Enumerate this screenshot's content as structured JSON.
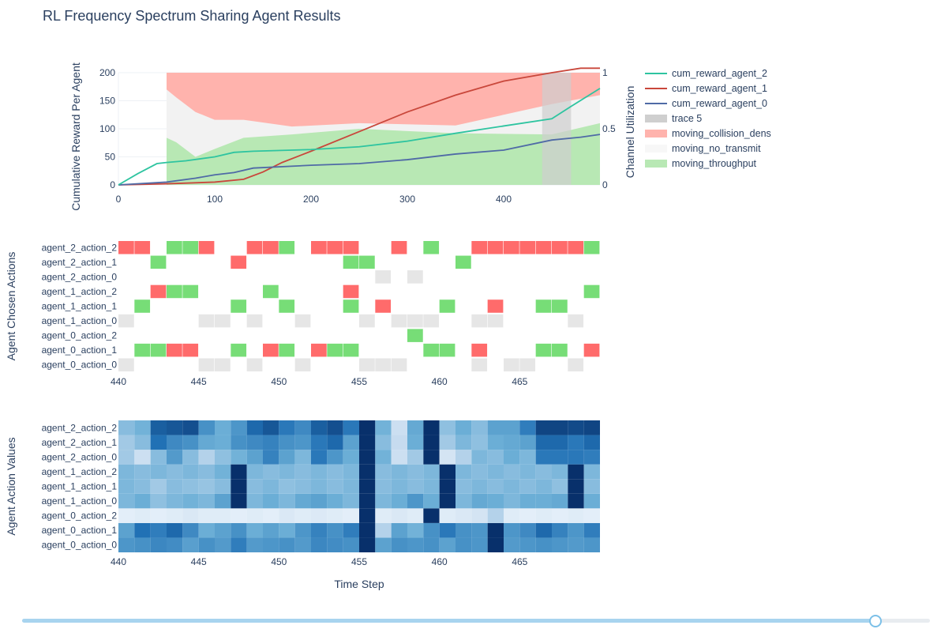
{
  "page": {
    "title": "RL Frequency Spectrum Sharing Agent Results"
  },
  "colors": {
    "agent_2": "#2ec4a0",
    "agent_1": "#c9473b",
    "agent_0": "#4f6aa6",
    "collision": "#ffb3ad",
    "no_transmit": "#f2f2f2",
    "throughput": "#b8e8b4",
    "trace5": "#cfcfcf",
    "ok": "#77dd77",
    "bad": "#ff6b6b",
    "idle": "#e6e6e6"
  },
  "slider": {
    "value": 0.94
  },
  "chart_data": [
    {
      "type": "line",
      "ylabel": "Cumulative Reward Per Agent",
      "y2label": "Channel Utilization",
      "xlim": [
        0,
        500
      ],
      "ylim": [
        0,
        200
      ],
      "y2lim": [
        0,
        1
      ],
      "xticks": [
        0,
        100,
        200,
        300,
        400
      ],
      "yticks": [
        0,
        50,
        100,
        150,
        200
      ],
      "y2ticks": [
        0,
        0.5,
        1
      ],
      "y2ticklabels": [
        "0",
        "0.5",
        "1"
      ],
      "legend_position": "right",
      "series": [
        {
          "name": "cum_reward_agent_2",
          "x": [
            0,
            20,
            40,
            50,
            70,
            100,
            120,
            140,
            200,
            250,
            300,
            350,
            400,
            450,
            470,
            500
          ],
          "y": [
            0,
            20,
            38,
            40,
            43,
            50,
            58,
            60,
            63,
            68,
            78,
            92,
            105,
            118,
            140,
            172
          ]
        },
        {
          "name": "cum_reward_agent_1",
          "x": [
            0,
            50,
            100,
            130,
            150,
            170,
            200,
            250,
            300,
            350,
            400,
            450,
            480,
            500
          ],
          "y": [
            0,
            2,
            5,
            10,
            23,
            40,
            60,
            95,
            130,
            160,
            185,
            200,
            208,
            208
          ]
        },
        {
          "name": "cum_reward_agent_0",
          "x": [
            0,
            50,
            80,
            100,
            120,
            140,
            200,
            250,
            300,
            350,
            400,
            450,
            480,
            500
          ],
          "y": [
            0,
            5,
            12,
            18,
            22,
            30,
            35,
            38,
            45,
            55,
            62,
            80,
            85,
            90
          ]
        },
        {
          "name": "trace 5",
          "x": [
            440,
            470
          ]
        },
        {
          "name": "moving_collision_dens",
          "x": [
            50,
            60,
            80,
            100,
            130,
            180,
            250,
            350,
            450,
            500
          ],
          "y": [
            1,
            1,
            1,
            1,
            1,
            1,
            1,
            1,
            1,
            1
          ]
        },
        {
          "name": "moving_no_transmit",
          "x": [
            50,
            60,
            80,
            100,
            130,
            180,
            250,
            350,
            450,
            500
          ],
          "y": [
            0.85,
            0.78,
            0.65,
            0.58,
            0.58,
            0.52,
            0.55,
            0.53,
            0.72,
            0.8
          ]
        },
        {
          "name": "moving_throughput",
          "x": [
            50,
            60,
            80,
            100,
            130,
            180,
            250,
            350,
            450,
            500
          ],
          "y": [
            0.42,
            0.38,
            0.25,
            0.32,
            0.42,
            0.45,
            0.5,
            0.46,
            0.45,
            0.55
          ]
        }
      ]
    },
    {
      "type": "heatmap",
      "ylabel": "Agent Chosen Actions",
      "xlim": [
        440,
        469
      ],
      "xticks": [
        440,
        445,
        450,
        455,
        460,
        465
      ],
      "rows": [
        "agent_0_action_0",
        "agent_0_action_1",
        "agent_0_action_2",
        "agent_1_action_0",
        "agent_1_action_1",
        "agent_1_action_2",
        "agent_2_action_0",
        "agent_2_action_1",
        "agent_2_action_2"
      ],
      "values": [
        [
          1,
          0,
          0,
          0,
          0,
          1,
          1,
          0,
          1,
          0,
          0,
          1,
          0,
          0,
          0,
          1,
          1,
          1,
          0,
          0,
          0,
          0,
          1,
          0,
          1,
          1,
          0,
          0,
          1,
          0
        ],
        [
          0,
          2,
          2,
          3,
          3,
          0,
          0,
          2,
          0,
          3,
          2,
          0,
          3,
          2,
          2,
          0,
          0,
          0,
          0,
          2,
          2,
          0,
          3,
          0,
          0,
          0,
          2,
          2,
          0,
          3
        ],
        [
          0,
          0,
          0,
          0,
          0,
          0,
          0,
          0,
          0,
          0,
          0,
          0,
          0,
          0,
          0,
          0,
          0,
          0,
          2,
          0,
          0,
          0,
          0,
          0,
          0,
          0,
          0,
          0,
          0,
          0
        ],
        [
          1,
          0,
          0,
          0,
          0,
          1,
          1,
          0,
          1,
          0,
          0,
          1,
          0,
          0,
          0,
          1,
          0,
          1,
          1,
          1,
          0,
          0,
          1,
          1,
          0,
          0,
          0,
          0,
          1,
          0
        ],
        [
          0,
          2,
          0,
          0,
          0,
          0,
          0,
          2,
          0,
          0,
          2,
          0,
          0,
          0,
          2,
          0,
          3,
          0,
          0,
          0,
          2,
          0,
          0,
          3,
          0,
          0,
          2,
          2,
          0,
          0
        ],
        [
          0,
          0,
          3,
          2,
          2,
          0,
          0,
          0,
          0,
          2,
          0,
          0,
          0,
          0,
          3,
          0,
          0,
          0,
          0,
          0,
          0,
          0,
          0,
          0,
          0,
          0,
          0,
          0,
          0,
          2
        ],
        [
          0,
          0,
          0,
          0,
          0,
          0,
          0,
          0,
          0,
          0,
          0,
          0,
          0,
          0,
          0,
          0,
          1,
          0,
          1,
          0,
          0,
          0,
          0,
          0,
          0,
          0,
          0,
          0,
          0,
          0
        ],
        [
          0,
          0,
          2,
          0,
          0,
          0,
          0,
          3,
          0,
          0,
          0,
          0,
          0,
          0,
          2,
          2,
          0,
          0,
          0,
          0,
          0,
          2,
          0,
          0,
          0,
          0,
          0,
          0,
          0,
          0
        ],
        [
          3,
          3,
          0,
          2,
          2,
          3,
          0,
          0,
          3,
          3,
          2,
          0,
          3,
          3,
          3,
          0,
          0,
          3,
          0,
          2,
          0,
          0,
          3,
          3,
          3,
          3,
          3,
          3,
          3,
          2
        ]
      ]
    },
    {
      "type": "heatmap",
      "ylabel": "Agent Action Values",
      "xlabel": "Time Step",
      "xlim": [
        440,
        469
      ],
      "xticks": [
        440,
        445,
        450,
        455,
        460,
        465
      ],
      "rows": [
        "agent_0_action_0",
        "agent_0_action_1",
        "agent_0_action_2",
        "agent_1_action_0",
        "agent_1_action_1",
        "agent_1_action_2",
        "agent_2_action_0",
        "agent_2_action_1",
        "agent_2_action_2"
      ],
      "values": [
        [
          0.6,
          0.62,
          0.66,
          0.64,
          0.56,
          0.62,
          0.58,
          0.7,
          0.58,
          0.6,
          0.62,
          0.58,
          0.66,
          0.64,
          0.62,
          1.0,
          0.55,
          0.62,
          0.6,
          0.62,
          0.55,
          0.62,
          0.6,
          1.0,
          0.58,
          0.6,
          0.62,
          0.6,
          0.58,
          0.6
        ],
        [
          0.55,
          0.75,
          0.7,
          0.78,
          0.65,
          0.5,
          0.55,
          0.62,
          0.5,
          0.55,
          0.5,
          0.6,
          0.68,
          0.62,
          0.7,
          1.0,
          0.3,
          0.55,
          0.48,
          0.62,
          0.72,
          0.62,
          0.6,
          1.0,
          0.6,
          0.65,
          0.78,
          0.68,
          0.6,
          0.7
        ],
        [
          0.1,
          0.12,
          0.1,
          0.12,
          0.15,
          0.12,
          0.12,
          0.1,
          0.12,
          0.1,
          0.15,
          0.12,
          0.14,
          0.12,
          0.1,
          1.0,
          0.12,
          0.15,
          0.12,
          1.0,
          0.12,
          0.15,
          0.18,
          0.3,
          0.12,
          0.1,
          0.12,
          0.1,
          0.12,
          0.1
        ],
        [
          0.45,
          0.5,
          0.4,
          0.45,
          0.48,
          0.45,
          0.55,
          1.0,
          0.45,
          0.5,
          0.45,
          0.52,
          0.55,
          0.5,
          0.45,
          1.0,
          0.45,
          0.5,
          0.6,
          0.5,
          1.0,
          0.45,
          0.52,
          0.5,
          0.45,
          0.5,
          0.5,
          0.52,
          1.0,
          0.5
        ],
        [
          0.45,
          0.42,
          0.35,
          0.42,
          0.4,
          0.38,
          0.42,
          1.0,
          0.42,
          0.45,
          0.4,
          0.42,
          0.45,
          0.42,
          0.45,
          1.0,
          0.42,
          0.45,
          0.42,
          0.45,
          1.0,
          0.42,
          0.45,
          0.42,
          0.45,
          0.42,
          0.45,
          0.4,
          1.0,
          0.42
        ],
        [
          0.45,
          0.42,
          0.45,
          0.42,
          0.45,
          0.42,
          0.48,
          1.0,
          0.45,
          0.42,
          0.45,
          0.42,
          0.45,
          0.42,
          0.45,
          1.0,
          0.42,
          0.45,
          0.42,
          0.45,
          1.0,
          0.45,
          0.42,
          0.45,
          0.42,
          0.45,
          0.42,
          0.45,
          1.0,
          0.45
        ],
        [
          0.35,
          0.22,
          0.42,
          0.58,
          0.42,
          0.3,
          0.4,
          0.48,
          0.55,
          0.68,
          0.55,
          0.45,
          0.72,
          0.6,
          0.5,
          1.0,
          0.48,
          0.22,
          0.35,
          1.0,
          0.18,
          0.3,
          0.45,
          0.42,
          0.5,
          0.45,
          0.72,
          0.72,
          0.72,
          0.7
        ],
        [
          0.35,
          0.42,
          0.75,
          0.65,
          0.62,
          0.52,
          0.5,
          0.62,
          0.65,
          0.68,
          0.62,
          0.6,
          0.72,
          0.78,
          0.55,
          1.0,
          0.42,
          0.25,
          0.5,
          1.0,
          0.35,
          0.45,
          0.4,
          0.5,
          0.52,
          0.55,
          0.78,
          0.78,
          0.72,
          0.78
        ],
        [
          0.42,
          0.48,
          0.82,
          0.85,
          0.88,
          0.62,
          0.5,
          0.6,
          0.78,
          0.85,
          0.72,
          0.65,
          0.82,
          0.88,
          0.72,
          1.0,
          0.48,
          0.22,
          0.52,
          1.0,
          0.4,
          0.5,
          0.42,
          0.55,
          0.55,
          0.7,
          0.92,
          0.92,
          0.9,
          0.92
        ]
      ]
    }
  ]
}
